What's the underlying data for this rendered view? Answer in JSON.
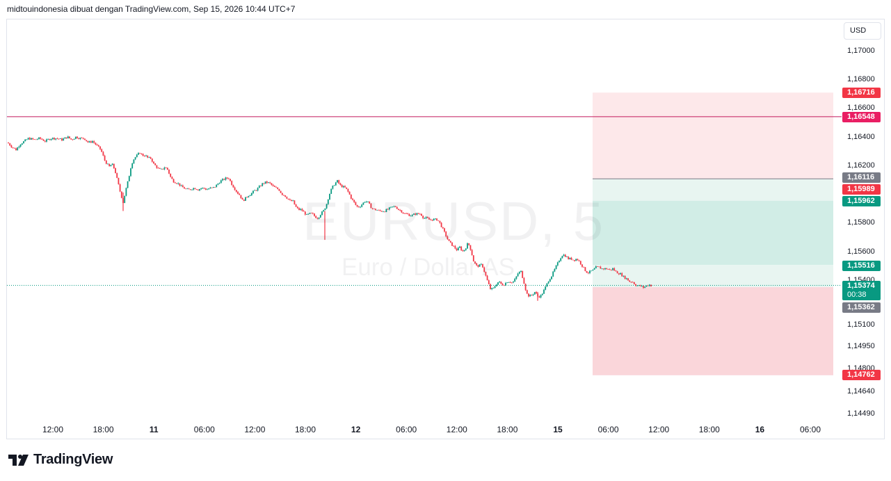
{
  "header": {
    "text": "midtouindonesia dibuat dengan TradingView.com, Sep 15, 2026 10:44 UTC+7"
  },
  "watermark": {
    "symbol": "EURUSD, 5",
    "description": "Euro / Dollar AS"
  },
  "currency": {
    "label": "USD"
  },
  "price_axis": {
    "ticks": [
      "1,17000",
      "1,16800",
      "1,16600",
      "1,16400",
      "1,16200",
      "1,15800",
      "1,15600",
      "1,15400",
      "1,15100",
      "1,14950",
      "1,14800",
      "1,14640",
      "1,14490"
    ]
  },
  "labels": {
    "stop_top": "1,16716",
    "hline": "1,16548",
    "target_line": "1,16116",
    "high_red": "1,15989",
    "green_top": "1,15962",
    "green_low": "1,15516",
    "last_price": "1,15374",
    "countdown": "00:38",
    "entry": "1,15362",
    "stop_bottom": "1,14762"
  },
  "time_axis": {
    "ticks": [
      {
        "label": "12:00",
        "bold": false
      },
      {
        "label": "18:00",
        "bold": false
      },
      {
        "label": "11",
        "bold": true
      },
      {
        "label": "06:00",
        "bold": false
      },
      {
        "label": "12:00",
        "bold": false
      },
      {
        "label": "18:00",
        "bold": false
      },
      {
        "label": "12",
        "bold": true
      },
      {
        "label": "06:00",
        "bold": false
      },
      {
        "label": "12:00",
        "bold": false
      },
      {
        "label": "18:00",
        "bold": false
      },
      {
        "label": "15",
        "bold": true
      },
      {
        "label": "06:00",
        "bold": false
      },
      {
        "label": "12:00",
        "bold": false
      },
      {
        "label": "18:00",
        "bold": false
      },
      {
        "label": "16",
        "bold": true
      },
      {
        "label": "06:00",
        "bold": false
      }
    ]
  },
  "colors": {
    "up": "#089981",
    "down": "#f23645",
    "hline": "#c2185b",
    "long_zone": "#d1ede6",
    "long_zone_light": "#e8f5f1",
    "short_zone": "#fde8ea",
    "short_zone_dark": "#fad6da"
  },
  "chart_data": {
    "type": "candlestick",
    "symbol": "EURUSD",
    "timeframe": "5",
    "path": [
      [
        0,
        1.1637
      ],
      [
        6,
        1.1634
      ],
      [
        12,
        1.1632
      ],
      [
        18,
        1.1636
      ],
      [
        24,
        1.1638
      ],
      [
        30,
        1.164
      ],
      [
        38,
        1.1639
      ],
      [
        46,
        1.164
      ],
      [
        54,
        1.1638
      ],
      [
        62,
        1.164
      ],
      [
        70,
        1.164
      ],
      [
        78,
        1.1639
      ],
      [
        86,
        1.1641
      ],
      [
        92,
        1.1639
      ],
      [
        98,
        1.1641
      ],
      [
        104,
        1.164
      ],
      [
        110,
        1.164
      ],
      [
        116,
        1.1637
      ],
      [
        122,
        1.1638
      ],
      [
        128,
        1.1635
      ],
      [
        134,
        1.1632
      ],
      [
        140,
        1.1624
      ],
      [
        146,
        1.162
      ],
      [
        150,
        1.1622
      ],
      [
        154,
        1.1618
      ],
      [
        158,
        1.161
      ],
      [
        162,
        1.1602
      ],
      [
        166,
        1.1595
      ],
      [
        170,
        1.1604
      ],
      [
        174,
        1.1612
      ],
      [
        178,
        1.1622
      ],
      [
        182,
        1.1626
      ],
      [
        186,
        1.1628
      ],
      [
        190,
        1.163
      ],
      [
        194,
        1.1628
      ],
      [
        198,
        1.1628
      ],
      [
        202,
        1.1626
      ],
      [
        206,
        1.1626
      ],
      [
        210,
        1.1622
      ],
      [
        214,
        1.162
      ],
      [
        218,
        1.1618
      ],
      [
        222,
        1.1618
      ],
      [
        226,
        1.162
      ],
      [
        230,
        1.1618
      ],
      [
        234,
        1.1613
      ],
      [
        238,
        1.161
      ],
      [
        242,
        1.1609
      ],
      [
        246,
        1.1608
      ],
      [
        250,
        1.1606
      ],
      [
        254,
        1.1605
      ],
      [
        258,
        1.1604
      ],
      [
        262,
        1.1604
      ],
      [
        266,
        1.1605
      ],
      [
        270,
        1.1605
      ],
      [
        274,
        1.1604
      ],
      [
        278,
        1.1605
      ],
      [
        282,
        1.1605
      ],
      [
        286,
        1.1604
      ],
      [
        290,
        1.1605
      ],
      [
        294,
        1.1605
      ],
      [
        298,
        1.1606
      ],
      [
        302,
        1.1608
      ],
      [
        306,
        1.161
      ],
      [
        310,
        1.1611
      ],
      [
        314,
        1.1612
      ],
      [
        318,
        1.1612
      ],
      [
        322,
        1.1608
      ],
      [
        326,
        1.1605
      ],
      [
        330,
        1.1602
      ],
      [
        334,
        1.16
      ],
      [
        338,
        1.1596
      ],
      [
        342,
        1.1598
      ],
      [
        346,
        1.16
      ],
      [
        350,
        1.1601
      ],
      [
        354,
        1.1603
      ],
      [
        358,
        1.1604
      ],
      [
        362,
        1.1606
      ],
      [
        366,
        1.1608
      ],
      [
        370,
        1.1609
      ],
      [
        374,
        1.1609
      ],
      [
        378,
        1.1608
      ],
      [
        382,
        1.1606
      ],
      [
        386,
        1.1605
      ],
      [
        390,
        1.1604
      ],
      [
        394,
        1.1601
      ],
      [
        398,
        1.16
      ],
      [
        402,
        1.1598
      ],
      [
        406,
        1.1596
      ],
      [
        410,
        1.1596
      ],
      [
        414,
        1.1592
      ],
      [
        418,
        1.159
      ],
      [
        422,
        1.159
      ],
      [
        426,
        1.1588
      ],
      [
        430,
        1.1586
      ],
      [
        434,
        1.1587
      ],
      [
        438,
        1.1587
      ],
      [
        442,
        1.1585
      ],
      [
        446,
        1.1584
      ],
      [
        450,
        1.1587
      ],
      [
        454,
        1.1589
      ],
      [
        458,
        1.1593
      ],
      [
        462,
        1.16
      ],
      [
        466,
        1.1605
      ],
      [
        470,
        1.1608
      ],
      [
        474,
        1.161
      ],
      [
        478,
        1.1607
      ],
      [
        482,
        1.1606
      ],
      [
        486,
        1.1605
      ],
      [
        490,
        1.1602
      ],
      [
        494,
        1.1598
      ],
      [
        498,
        1.1595
      ],
      [
        502,
        1.1592
      ],
      [
        506,
        1.1592
      ],
      [
        510,
        1.1594
      ],
      [
        514,
        1.1596
      ],
      [
        518,
        1.1595
      ],
      [
        522,
        1.1592
      ],
      [
        526,
        1.159
      ],
      [
        530,
        1.159
      ],
      [
        534,
        1.1589
      ],
      [
        538,
        1.1589
      ],
      [
        542,
        1.1589
      ],
      [
        546,
        1.159
      ],
      [
        550,
        1.1591
      ],
      [
        554,
        1.1592
      ],
      [
        558,
        1.1592
      ],
      [
        562,
        1.159
      ],
      [
        566,
        1.1589
      ],
      [
        570,
        1.1587
      ],
      [
        574,
        1.1587
      ],
      [
        578,
        1.1586
      ],
      [
        582,
        1.1586
      ],
      [
        586,
        1.1587
      ],
      [
        590,
        1.1587
      ],
      [
        594,
        1.1587
      ],
      [
        598,
        1.1584
      ],
      [
        602,
        1.1584
      ],
      [
        606,
        1.1583
      ],
      [
        610,
        1.1583
      ],
      [
        614,
        1.1583
      ],
      [
        618,
        1.1583
      ],
      [
        622,
        1.158
      ],
      [
        626,
        1.1576
      ],
      [
        630,
        1.1572
      ],
      [
        634,
        1.1568
      ],
      [
        638,
        1.1566
      ],
      [
        642,
        1.1564
      ],
      [
        646,
        1.1562
      ],
      [
        650,
        1.1564
      ],
      [
        654,
        1.1561
      ],
      [
        658,
        1.1563
      ],
      [
        662,
        1.1567
      ],
      [
        666,
        1.1562
      ],
      [
        670,
        1.1554
      ],
      [
        674,
        1.1551
      ],
      [
        678,
        1.1551
      ],
      [
        682,
        1.1552
      ],
      [
        686,
        1.1546
      ],
      [
        690,
        1.154
      ],
      [
        694,
        1.1535
      ],
      [
        698,
        1.1535
      ],
      [
        702,
        1.1538
      ],
      [
        706,
        1.154
      ],
      [
        710,
        1.1538
      ],
      [
        714,
        1.1538
      ],
      [
        718,
        1.154
      ],
      [
        722,
        1.154
      ],
      [
        726,
        1.1539
      ],
      [
        730,
        1.1542
      ],
      [
        734,
        1.1546
      ],
      [
        738,
        1.1547
      ],
      [
        742,
        1.154
      ],
      [
        746,
        1.1532
      ],
      [
        750,
        1.153
      ],
      [
        754,
        1.1531
      ],
      [
        758,
        1.1533
      ],
      [
        762,
        1.153
      ],
      [
        766,
        1.153
      ],
      [
        770,
        1.1533
      ],
      [
        774,
        1.1537
      ],
      [
        778,
        1.1541
      ],
      [
        782,
        1.1544
      ],
      [
        786,
        1.1548
      ],
      [
        790,
        1.1552
      ],
      [
        794,
        1.1556
      ],
      [
        798,
        1.1559
      ],
      [
        802,
        1.1558
      ],
      [
        806,
        1.1556
      ],
      [
        810,
        1.1556
      ],
      [
        814,
        1.1555
      ],
      [
        818,
        1.1556
      ],
      [
        822,
        1.1554
      ],
      [
        826,
        1.1551
      ],
      [
        830,
        1.1548
      ],
      [
        834,
        1.1546
      ],
      [
        838,
        1.1547
      ],
      [
        842,
        1.1548
      ],
      [
        846,
        1.155
      ],
      [
        850,
        1.155
      ],
      [
        854,
        1.1549
      ],
      [
        858,
        1.1549
      ],
      [
        862,
        1.1549
      ],
      [
        866,
        1.1548
      ],
      [
        870,
        1.1549
      ],
      [
        874,
        1.1547
      ],
      [
        878,
        1.1546
      ],
      [
        882,
        1.1545
      ],
      [
        886,
        1.1543
      ],
      [
        890,
        1.1542
      ],
      [
        894,
        1.154
      ],
      [
        898,
        1.154
      ],
      [
        902,
        1.1538
      ],
      [
        906,
        1.1537
      ],
      [
        910,
        1.1537
      ],
      [
        914,
        1.1536
      ],
      [
        918,
        1.1537
      ],
      [
        922,
        1.1538
      ],
      [
        926,
        1.1537
      ]
    ],
    "spikes": [
      {
        "at": 166,
        "low": 1.1589
      },
      {
        "at": 456,
        "low": 1.1569
      },
      {
        "at": 762,
        "low": 1.1527
      }
    ],
    "horizontal_line": 1.16548,
    "last_price": 1.15374,
    "entry": 1.15362,
    "position_zones": [
      {
        "from": 1.16716,
        "to": 1.15989,
        "color": "short_zone"
      },
      {
        "from": 1.16116,
        "to": 1.15962,
        "color": "long_zone_light"
      },
      {
        "from": 1.15962,
        "to": 1.15516,
        "color": "long_zone"
      },
      {
        "from": 1.15516,
        "to": 1.15362,
        "color": "long_zone_light"
      },
      {
        "from": 1.15362,
        "to": 1.14762,
        "color": "short_zone_dark"
      }
    ]
  }
}
